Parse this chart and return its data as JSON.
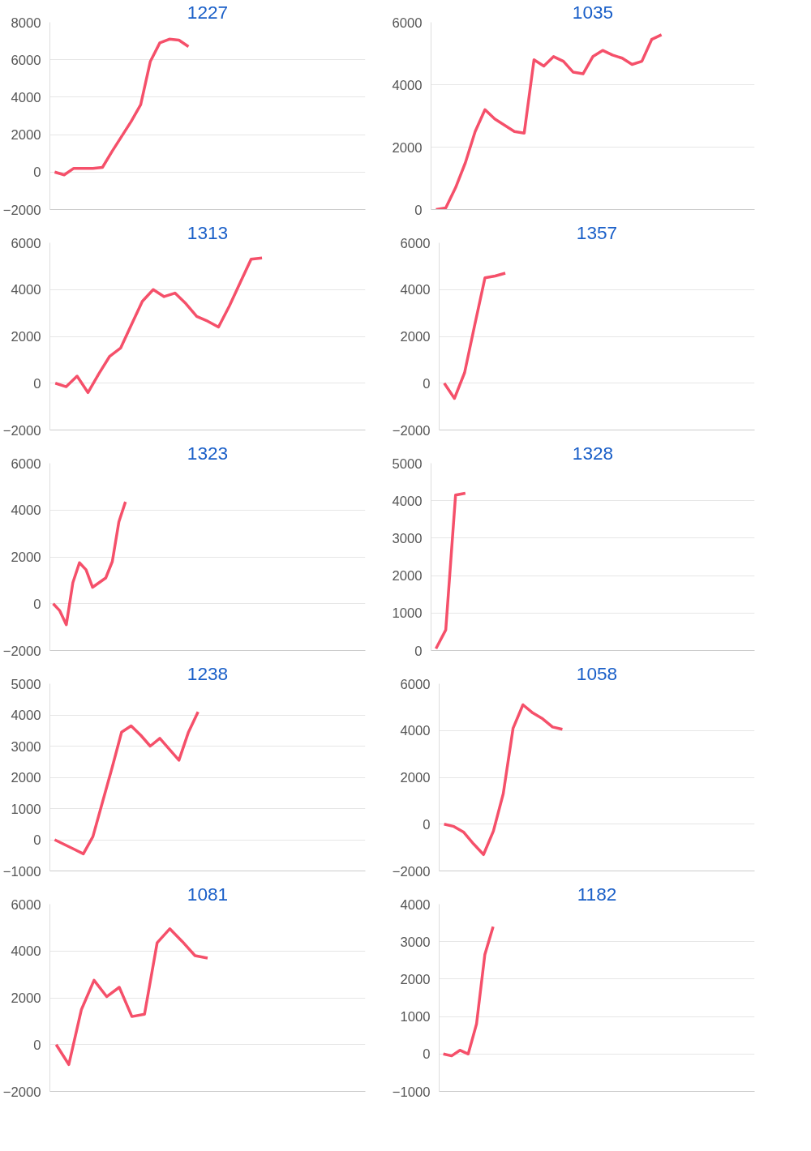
{
  "chart_data": [
    {
      "type": "line",
      "title": "1227",
      "categories": [
        null,
        null,
        null,
        null,
        null,
        null,
        null,
        null,
        null,
        null,
        null,
        null,
        null,
        null,
        null,
        null,
        null,
        null,
        null,
        null,
        null,
        null,
        null,
        null,
        null,
        null,
        null,
        null,
        null,
        null,
        null,
        null,
        null
      ],
      "values": [
        0,
        -150,
        200,
        200,
        200,
        250,
        1100,
        1900,
        2700,
        3600,
        5900,
        6900,
        7100,
        7050,
        6700,
        null,
        null,
        null,
        null,
        null,
        null,
        null,
        null,
        null,
        null,
        null,
        null,
        null,
        null,
        null,
        null,
        null,
        null
      ],
      "color": "#f5506a",
      "ylim": [
        -2000,
        8000
      ],
      "yticks": [
        -2000,
        0,
        2000,
        4000,
        6000,
        8000
      ],
      "grid": "y",
      "tick_labels": "y"
    },
    {
      "type": "line",
      "title": "1035",
      "categories": [
        null,
        null,
        null,
        null,
        null,
        null,
        null,
        null,
        null,
        null,
        null,
        null,
        null,
        null,
        null,
        null,
        null,
        null,
        null,
        null,
        null,
        null,
        null,
        null,
        null,
        null,
        null,
        null,
        null,
        null,
        null,
        null,
        null
      ],
      "values": [
        0,
        50,
        700,
        1500,
        2500,
        3200,
        2900,
        2700,
        2500,
        2450,
        4800,
        4600,
        4900,
        4750,
        4400,
        4350,
        4900,
        5100,
        4950,
        4850,
        4650,
        4750,
        5450,
        5600,
        null,
        null,
        null,
        null,
        null,
        null,
        null,
        null,
        null
      ],
      "color": "#f5506a",
      "ylim": [
        0,
        6000
      ],
      "yticks": [
        0,
        2000,
        4000,
        6000
      ],
      "grid": "y",
      "tick_labels": "y"
    },
    {
      "type": "line",
      "title": "1313",
      "categories": [
        null,
        null,
        null,
        null,
        null,
        null,
        null,
        null,
        null,
        null,
        null,
        null,
        null,
        null,
        null,
        null,
        null,
        null,
        null,
        null,
        null,
        null,
        null,
        null,
        null,
        null,
        null,
        null,
        null
      ],
      "values": [
        0,
        -150,
        300,
        -400,
        400,
        1150,
        1500,
        2500,
        3500,
        4000,
        3700,
        3850,
        3400,
        2850,
        2650,
        2400,
        3300,
        4300,
        5300,
        5350,
        null,
        null,
        null,
        null,
        null,
        null,
        null,
        null,
        null
      ],
      "color": "#f5506a",
      "ylim": [
        -2000,
        6000
      ],
      "yticks": [
        -2000,
        0,
        2000,
        4000,
        6000
      ],
      "grid": "y",
      "tick_labels": "y"
    },
    {
      "type": "line",
      "title": "1357",
      "categories": [
        null,
        null,
        null,
        null,
        null,
        null,
        null,
        null,
        null,
        null,
        null,
        null,
        null,
        null,
        null,
        null,
        null,
        null,
        null,
        null,
        null,
        null,
        null,
        null,
        null,
        null,
        null,
        null,
        null,
        null,
        null
      ],
      "values": [
        0,
        -650,
        450,
        2500,
        4500,
        4580,
        4700,
        null,
        null,
        null,
        null,
        null,
        null,
        null,
        null,
        null,
        null,
        null,
        null,
        null,
        null,
        null,
        null,
        null,
        null,
        null,
        null,
        null,
        null,
        null,
        null
      ],
      "color": "#f5506a",
      "ylim": [
        -2000,
        6000
      ],
      "yticks": [
        -2000,
        0,
        2000,
        4000,
        6000
      ],
      "grid": "y",
      "tick_labels": "y"
    },
    {
      "type": "line",
      "title": "1323",
      "categories": [
        null,
        null,
        null,
        null,
        null,
        null,
        null,
        null,
        null,
        null,
        null,
        null,
        null,
        null,
        null,
        null,
        null,
        null,
        null,
        null,
        null,
        null,
        null,
        null,
        null,
        null,
        null,
        null,
        null,
        null,
        null,
        null,
        null,
        null,
        null,
        null,
        null,
        null,
        null,
        null,
        null,
        null,
        null,
        null,
        null,
        null,
        null,
        null
      ],
      "values": [
        0,
        -300,
        -900,
        900,
        1750,
        1450,
        700,
        900,
        1100,
        1800,
        3500,
        4350,
        null,
        null,
        null,
        null,
        null,
        null,
        null,
        null,
        null,
        null,
        null,
        null,
        null,
        null,
        null,
        null,
        null,
        null,
        null,
        null,
        null,
        null,
        null,
        null,
        null,
        null,
        null,
        null,
        null,
        null,
        null,
        null,
        null,
        null,
        null,
        null
      ],
      "color": "#f5506a",
      "ylim": [
        -2000,
        6000
      ],
      "yticks": [
        -2000,
        0,
        2000,
        4000,
        6000
      ],
      "grid": "y",
      "tick_labels": "y"
    },
    {
      "type": "line",
      "title": "1328",
      "categories": [
        null,
        null,
        null,
        null,
        null,
        null,
        null,
        null,
        null,
        null,
        null,
        null,
        null,
        null,
        null,
        null,
        null,
        null,
        null,
        null,
        null,
        null,
        null,
        null,
        null,
        null,
        null,
        null,
        null,
        null,
        null,
        null,
        null
      ],
      "values": [
        50,
        550,
        4150,
        4200,
        null,
        null,
        null,
        null,
        null,
        null,
        null,
        null,
        null,
        null,
        null,
        null,
        null,
        null,
        null,
        null,
        null,
        null,
        null,
        null,
        null,
        null,
        null,
        null,
        null,
        null,
        null,
        null,
        null
      ],
      "color": "#f5506a",
      "ylim": [
        0,
        5000
      ],
      "yticks": [
        0,
        1000,
        2000,
        3000,
        4000,
        5000
      ],
      "grid": "y",
      "tick_labels": "y"
    },
    {
      "type": "line",
      "title": "1238",
      "categories": [
        null,
        null,
        null,
        null,
        null,
        null,
        null,
        null,
        null,
        null,
        null,
        null,
        null,
        null,
        null,
        null,
        null,
        null,
        null,
        null,
        null,
        null,
        null,
        null,
        null,
        null,
        null,
        null,
        null,
        null,
        null,
        null,
        null
      ],
      "values": [
        0,
        -150,
        -300,
        -450,
        100,
        1200,
        2300,
        3450,
        3650,
        3350,
        3000,
        3250,
        2900,
        2550,
        3450,
        4100,
        null,
        null,
        null,
        null,
        null,
        null,
        null,
        null,
        null,
        null,
        null,
        null,
        null,
        null,
        null,
        null,
        null
      ],
      "color": "#f5506a",
      "ylim": [
        -1000,
        5000
      ],
      "yticks": [
        -1000,
        0,
        1000,
        2000,
        3000,
        4000,
        5000
      ],
      "grid": "y",
      "tick_labels": "y"
    },
    {
      "type": "line",
      "title": "1058",
      "categories": [
        null,
        null,
        null,
        null,
        null,
        null,
        null,
        null,
        null,
        null,
        null,
        null,
        null,
        null,
        null,
        null,
        null,
        null,
        null,
        null,
        null,
        null,
        null,
        null,
        null,
        null,
        null,
        null,
        null,
        null,
        null,
        null
      ],
      "values": [
        0,
        -100,
        -350,
        -850,
        -1300,
        -300,
        1300,
        4100,
        5100,
        4750,
        4500,
        4150,
        4050,
        null,
        null,
        null,
        null,
        null,
        null,
        null,
        null,
        null,
        null,
        null,
        null,
        null,
        null,
        null,
        null,
        null,
        null,
        null
      ],
      "color": "#f5506a",
      "ylim": [
        -2000,
        6000
      ],
      "yticks": [
        -2000,
        0,
        2000,
        4000,
        6000
      ],
      "grid": "y",
      "tick_labels": "y"
    },
    {
      "type": "line",
      "title": "1081",
      "categories": [
        null,
        null,
        null,
        null,
        null,
        null,
        null,
        null,
        null,
        null,
        null,
        null,
        null,
        null,
        null,
        null,
        null,
        null,
        null,
        null,
        null,
        null,
        null,
        null,
        null
      ],
      "values": [
        0,
        -850,
        1500,
        2750,
        2050,
        2450,
        1200,
        1300,
        4350,
        4950,
        4400,
        3800,
        3700,
        null,
        null,
        null,
        null,
        null,
        null,
        null,
        null,
        null,
        null,
        null,
        null
      ],
      "color": "#f5506a",
      "ylim": [
        -2000,
        6000
      ],
      "yticks": [
        -2000,
        0,
        2000,
        4000,
        6000
      ],
      "grid": "y",
      "tick_labels": "y"
    },
    {
      "type": "line",
      "title": "1182",
      "categories": [
        null,
        null,
        null,
        null,
        null,
        null,
        null,
        null,
        null,
        null,
        null,
        null,
        null,
        null,
        null,
        null,
        null,
        null,
        null,
        null,
        null,
        null,
        null,
        null,
        null,
        null,
        null,
        null,
        null,
        null,
        null,
        null,
        null,
        null,
        null,
        null,
        null,
        null
      ],
      "values": [
        0,
        -50,
        100,
        0,
        800,
        2650,
        3400,
        null,
        null,
        null,
        null,
        null,
        null,
        null,
        null,
        null,
        null,
        null,
        null,
        null,
        null,
        null,
        null,
        null,
        null,
        null,
        null,
        null,
        null,
        null,
        null,
        null,
        null,
        null,
        null,
        null,
        null,
        null
      ],
      "color": "#f5506a",
      "ylim": [
        -1000,
        4000
      ],
      "yticks": [
        -1000,
        0,
        1000,
        2000,
        3000,
        4000
      ],
      "grid": "y",
      "tick_labels": "y"
    }
  ]
}
